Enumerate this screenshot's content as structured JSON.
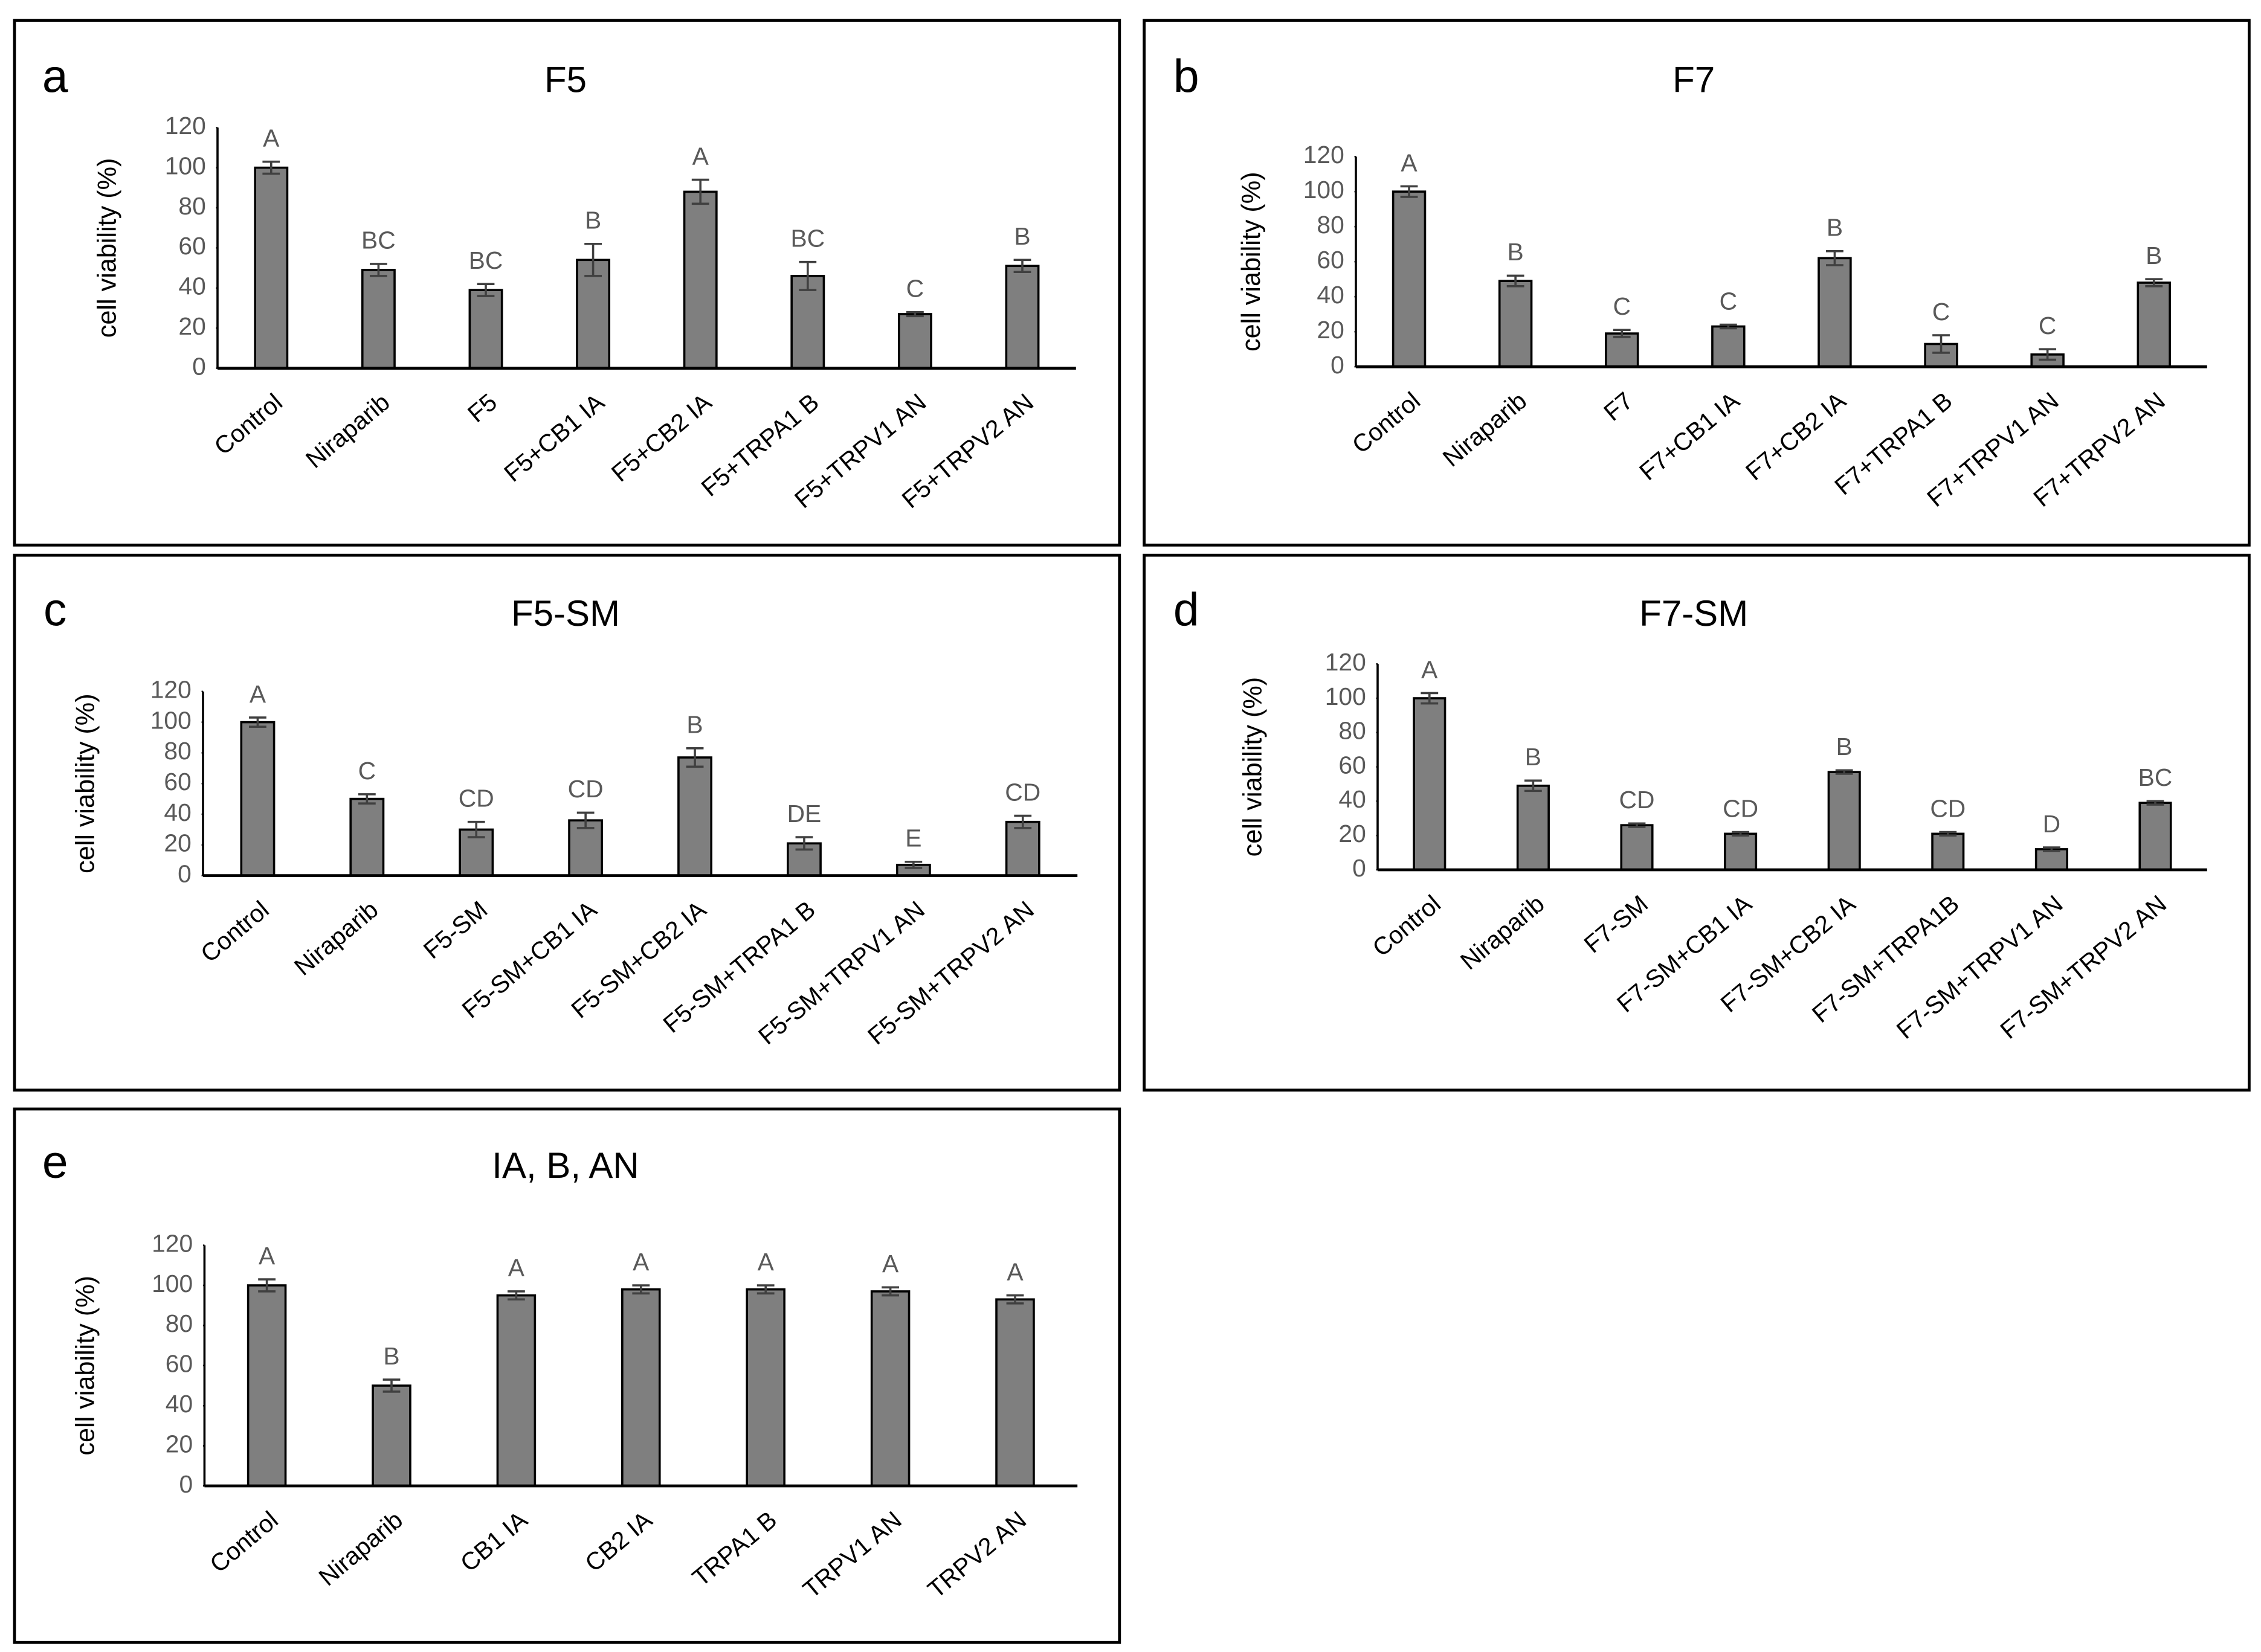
{
  "chart_data": [
    {
      "type": "bar",
      "panel": "a",
      "title": "F5",
      "ylabel": "cell viability (%)",
      "categories": [
        "Control",
        "Niraparib",
        "F5",
        "F5+CB1 IA",
        "F5+CB2 IA",
        "F5+TRPA1 B",
        "F5+TRPV1 AN",
        "F5+TRPV2 AN"
      ],
      "values": [
        100,
        49,
        39,
        54,
        88,
        46,
        27,
        51
      ],
      "errors": [
        3,
        3,
        3,
        8,
        6,
        7,
        1,
        3
      ],
      "letters": [
        "A",
        "BC",
        "BC",
        "B",
        "A",
        "BC",
        "C",
        "B"
      ],
      "color": "#7f7f7f",
      "ylim": [
        0,
        120
      ],
      "yticks": [
        0,
        20,
        40,
        60,
        80,
        100,
        120
      ]
    },
    {
      "type": "bar",
      "panel": "b",
      "title": "F7",
      "ylabel": "cell viability (%)",
      "categories": [
        "Control",
        "Niraparib",
        "F7",
        "F7+CB1 IA",
        "F7+CB2 IA",
        "F7+TRPA1 B",
        "F7+TRPV1 AN",
        "F7+TRPV2 AN"
      ],
      "values": [
        100,
        49,
        19,
        23,
        62,
        13,
        7,
        48
      ],
      "errors": [
        3,
        3,
        2,
        1,
        4,
        5,
        3,
        2
      ],
      "letters": [
        "A",
        "B",
        "C",
        "C",
        "B",
        "C",
        "C",
        "B"
      ],
      "color": "#7f7f7f",
      "ylim": [
        0,
        120
      ],
      "yticks": [
        0,
        20,
        40,
        60,
        80,
        100,
        120
      ]
    },
    {
      "type": "bar",
      "panel": "c",
      "title": "F5-SM",
      "ylabel": "cell viability (%)",
      "categories": [
        "Control",
        "Niraparib",
        "F5-SM",
        "F5-SM+CB1 IA",
        "F5-SM+CB2 IA",
        "F5-SM+TRPA1 B",
        "F5-SM+TRPV1 AN",
        "F5-SM+TRPV2 AN"
      ],
      "values": [
        100,
        50,
        30,
        36,
        77,
        21,
        7,
        35
      ],
      "errors": [
        3,
        3,
        5,
        5,
        6,
        4,
        2,
        4
      ],
      "letters": [
        "A",
        "C",
        "CD",
        "CD",
        "B",
        "DE",
        "E",
        "CD"
      ],
      "color": "#7f7f7f",
      "ylim": [
        0,
        120
      ],
      "yticks": [
        0,
        20,
        40,
        60,
        80,
        100,
        120
      ]
    },
    {
      "type": "bar",
      "panel": "d",
      "title": "F7-SM",
      "ylabel": "cell viability (%)",
      "categories": [
        "Control",
        "Niraparib",
        "F7-SM",
        "F7-SM+CB1 IA",
        "F7-SM+CB2 IA",
        "F7-SM+TRPA1B",
        "F7-SM+TRPV1 AN",
        "F7-SM+TRPV2 AN"
      ],
      "values": [
        100,
        49,
        26,
        21,
        57,
        21,
        12,
        39
      ],
      "errors": [
        3,
        3,
        1,
        1,
        1,
        1,
        1,
        1
      ],
      "letters": [
        "A",
        "B",
        "CD",
        "CD",
        "B",
        "CD",
        "D",
        "BC"
      ],
      "color": "#7f7f7f",
      "ylim": [
        0,
        120
      ],
      "yticks": [
        0,
        20,
        40,
        60,
        80,
        100,
        120
      ]
    },
    {
      "type": "bar",
      "panel": "e",
      "title": "IA, B, AN",
      "ylabel": "cell viability (%)",
      "categories": [
        "Control",
        "Niraparib",
        "CB1 IA",
        "CB2 IA",
        "TRPA1 B",
        "TRPV1 AN",
        "TRPV2 AN"
      ],
      "values": [
        100,
        50,
        95,
        98,
        98,
        97,
        93
      ],
      "errors": [
        3,
        3,
        2,
        2,
        2,
        2,
        2
      ],
      "letters": [
        "A",
        "B",
        "A",
        "A",
        "A",
        "A",
        "A"
      ],
      "color": "#7f7f7f",
      "ylim": [
        0,
        120
      ],
      "yticks": [
        0,
        20,
        40,
        60,
        80,
        100,
        120
      ]
    }
  ]
}
